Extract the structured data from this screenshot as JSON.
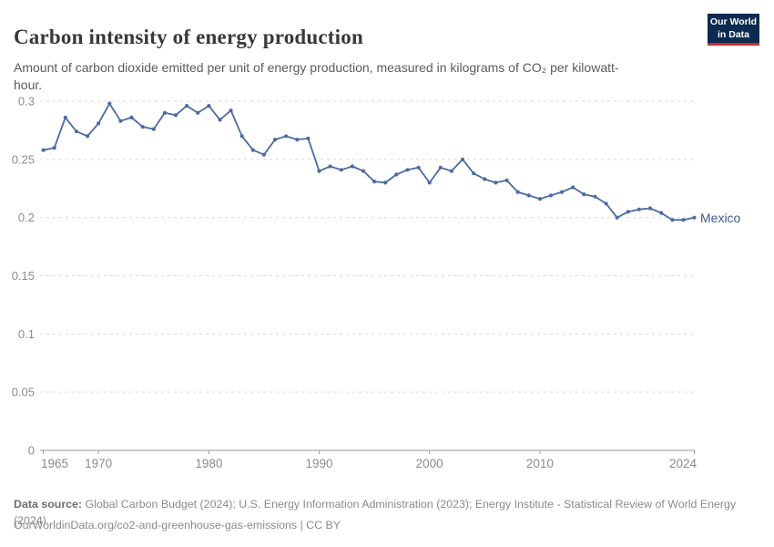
{
  "header": {
    "title": "Carbon intensity of energy production",
    "subtitle": "Amount of carbon dioxide emitted per unit of energy production, measured in kilograms of CO₂ per kilowatt-hour.",
    "logo": {
      "line1": "Our World",
      "line2": "in Data",
      "bg_color": "#0d2b50",
      "accent_color": "#c62f31"
    }
  },
  "chart_data": {
    "type": "line",
    "title": "Carbon intensity of energy production",
    "ylabel": "",
    "xlabel": "",
    "unit": "kilograms of CO₂ per kilowatt-hour",
    "grid": "horizontal dashed",
    "legend_position": "end-of-line label",
    "ylim": [
      0,
      0.3
    ],
    "xlim": [
      1965,
      2024
    ],
    "yticks": [
      0,
      0.05,
      0.1,
      0.15,
      0.2,
      0.25,
      0.3
    ],
    "ytick_labels": [
      "0",
      "0.05",
      "0.1",
      "0.15",
      "0.2",
      "0.25",
      "0.3"
    ],
    "xticks": [
      1965,
      1970,
      1980,
      1990,
      2000,
      2010,
      2024
    ],
    "xtick_labels": [
      "1965",
      "1970",
      "1980",
      "1990",
      "2000",
      "2010",
      "2024"
    ],
    "series": [
      {
        "name": "Mexico",
        "color": "#4c6aa0",
        "label_color": "#3d5a8f",
        "years": [
          1965,
          1966,
          1967,
          1968,
          1969,
          1970,
          1971,
          1972,
          1973,
          1974,
          1975,
          1976,
          1977,
          1978,
          1979,
          1980,
          1981,
          1982,
          1983,
          1984,
          1985,
          1986,
          1987,
          1988,
          1989,
          1990,
          1991,
          1992,
          1993,
          1994,
          1995,
          1996,
          1997,
          1998,
          1999,
          2000,
          2001,
          2002,
          2003,
          2004,
          2005,
          2006,
          2007,
          2008,
          2009,
          2010,
          2011,
          2012,
          2013,
          2014,
          2015,
          2016,
          2017,
          2018,
          2019,
          2020,
          2021,
          2022,
          2023,
          2024
        ],
        "values": [
          0.258,
          0.26,
          0.286,
          0.274,
          0.27,
          0.281,
          0.298,
          0.283,
          0.286,
          0.278,
          0.276,
          0.29,
          0.288,
          0.296,
          0.29,
          0.296,
          0.284,
          0.292,
          0.27,
          0.258,
          0.254,
          0.267,
          0.27,
          0.267,
          0.268,
          0.24,
          0.244,
          0.241,
          0.244,
          0.24,
          0.231,
          0.23,
          0.237,
          0.241,
          0.243,
          0.23,
          0.243,
          0.24,
          0.25,
          0.238,
          0.233,
          0.23,
          0.232,
          0.222,
          0.219,
          0.216,
          0.219,
          0.222,
          0.226,
          0.22,
          0.218,
          0.212,
          0.2,
          0.205,
          0.207,
          0.208,
          0.204,
          0.198,
          0.198,
          0.2
        ]
      }
    ],
    "end_label": "Mexico",
    "axis_color": "#9a9a9a",
    "grid_color": "#d9d9d9",
    "tick_label_color": "#8b8b8b"
  },
  "footer": {
    "source_label": "Data source:",
    "source_text": " Global Carbon Budget (2024); U.S. Energy Information Administration (2023); Energy Institute - Statistical Review of World Energy (2024)",
    "link_text": "OurWorldinData.org/co2-and-greenhouse-gas-emissions | CC BY"
  }
}
